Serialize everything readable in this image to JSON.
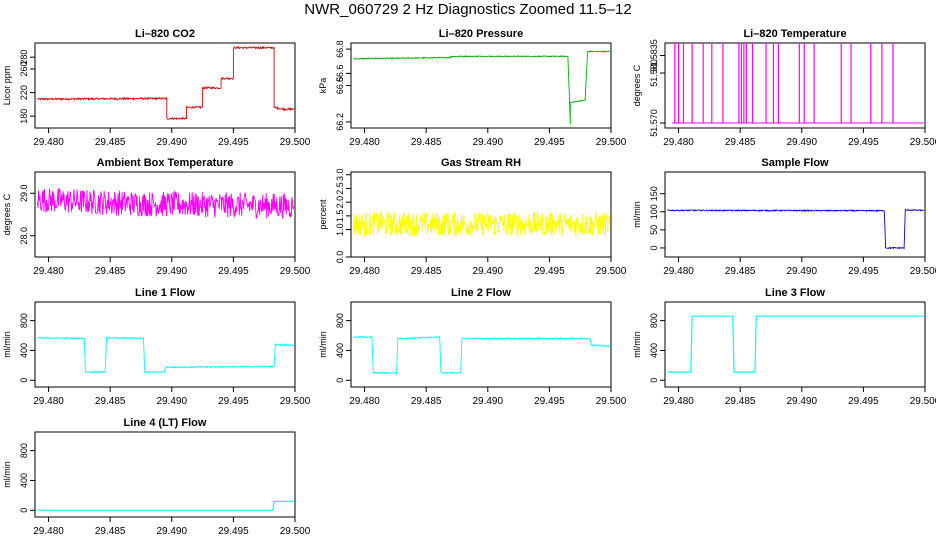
{
  "page": {
    "title": "NWR_060729  2 Hz Diagnostics Zoomed 11.5–12"
  },
  "chart_data": [
    {
      "type": "line",
      "title": "Li–820 CO2",
      "ylabel": "Licor ppm",
      "xlabel": "",
      "xlim": [
        29.4789,
        29.5
      ],
      "ylim": [
        160,
        304
      ],
      "xticks": [
        "29.480",
        "29.485",
        "29.490",
        "29.495",
        "29.500"
      ],
      "yticks": [
        {
          "v": 180,
          "label": "180"
        },
        {
          "v": 220,
          "label": "220"
        },
        {
          "v": 260,
          "label": "260"
        },
        {
          "v": 280,
          "label": "280"
        }
      ],
      "color": "#dd0000",
      "noise": 1.5,
      "impulses": false,
      "series": [
        {
          "name": "CO2",
          "x": [
            29.4791,
            29.4896,
            29.4896,
            29.4912,
            29.4912,
            29.4925,
            29.4925,
            29.494,
            29.494,
            29.495,
            29.495,
            29.4983,
            29.4983,
            29.499,
            29.4999
          ],
          "y": [
            209,
            210,
            176,
            176,
            195,
            195,
            228,
            228,
            244,
            244,
            296,
            296,
            195,
            192,
            192
          ]
        }
      ]
    },
    {
      "type": "line",
      "title": "Li–820 Pressure",
      "ylabel": "kPa",
      "xlabel": "",
      "xlim": [
        29.4789,
        29.5
      ],
      "ylim": [
        66.15,
        66.85
      ],
      "xticks": [
        "29.480",
        "29.485",
        "29.490",
        "29.495",
        "29.500"
      ],
      "yticks": [
        {
          "v": 66.2,
          "label": "66.2"
        },
        {
          "v": 66.5,
          "label": "66.5"
        },
        {
          "v": 66.6,
          "label": "66.6"
        },
        {
          "v": 66.8,
          "label": "66.8"
        }
      ],
      "color": "#00b000",
      "noise": 0.004,
      "impulses": false,
      "series": [
        {
          "name": "Pressure",
          "x": [
            29.4791,
            29.487,
            29.487,
            29.4965,
            29.4967,
            29.4967,
            29.4979,
            29.4981,
            29.4999
          ],
          "y": [
            66.72,
            66.73,
            66.74,
            66.74,
            66.18,
            66.36,
            66.38,
            66.78,
            66.78
          ]
        }
      ]
    },
    {
      "type": "line",
      "title": "Li–820 Temperature",
      "ylabel": "degrees C",
      "xlabel": "",
      "xlim": [
        29.4789,
        29.5
      ],
      "ylim": [
        51.569,
        51.586
      ],
      "xticks": [
        "29.480",
        "29.485",
        "29.490",
        "29.495",
        "29.500"
      ],
      "yticks": [
        {
          "v": 51.57,
          "label": "51.570"
        },
        {
          "v": 51.58,
          "label": "51.580"
        },
        {
          "v": 51.5835,
          "label": "51.5835"
        }
      ],
      "color": "#ff00ff",
      "noise": 0,
      "impulses": true,
      "base": 51.57,
      "series": [
        {
          "name": "Temperature",
          "x": [
            29.4797,
            29.48,
            29.4804,
            29.4811,
            29.482,
            29.4827,
            29.4836,
            29.4849,
            29.4851,
            29.4853,
            29.4855,
            29.486,
            29.4871,
            29.4877,
            29.4881,
            29.4898,
            29.4902,
            29.491,
            29.4932,
            29.494,
            29.4956,
            29.4965,
            29.4974
          ],
          "y": [
            51.586,
            51.586,
            51.586,
            51.586,
            51.586,
            51.586,
            51.586,
            51.586,
            51.586,
            51.586,
            51.586,
            51.586,
            51.586,
            51.586,
            51.586,
            51.586,
            51.586,
            51.586,
            51.586,
            51.586,
            51.586,
            51.586,
            51.586
          ]
        }
      ]
    },
    {
      "type": "line",
      "title": "Ambient Box Temperature",
      "ylabel": "degrees C",
      "xlabel": "",
      "xlim": [
        29.4789,
        29.5
      ],
      "ylim": [
        27.5,
        29.5
      ],
      "xticks": [
        "29.480",
        "29.485",
        "29.490",
        "29.495",
        "29.500"
      ],
      "yticks": [
        {
          "v": 28.0,
          "label": "28.0"
        },
        {
          "v": 29.0,
          "label": "29.0"
        }
      ],
      "color": "#ff00ff",
      "noise": 0.3,
      "impulses": false,
      "series": [
        {
          "name": "Ambient",
          "x": [
            29.4791,
            29.483,
            29.488,
            29.4999
          ],
          "y": [
            28.85,
            28.8,
            28.75,
            28.7
          ]
        }
      ]
    },
    {
      "type": "line",
      "title": "Gas Stream RH",
      "ylabel": "percent",
      "xlabel": "",
      "xlim": [
        29.4789,
        29.5
      ],
      "ylim": [
        0.0,
        3.1
      ],
      "xticks": [
        "29.480",
        "29.485",
        "29.490",
        "29.495",
        "29.500"
      ],
      "yticks": [
        {
          "v": 0.0,
          "label": "0.0"
        },
        {
          "v": 1.0,
          "label": "1.0"
        },
        {
          "v": 1.5,
          "label": "1.5"
        },
        {
          "v": 2.0,
          "label": "2.0"
        },
        {
          "v": 2.5,
          "label": "2.5"
        },
        {
          "v": 3.0,
          "label": "3.0"
        }
      ],
      "color": "#ffff00",
      "noise": 0.45,
      "impulses": false,
      "series": [
        {
          "name": "RH",
          "x": [
            29.4791,
            29.4999
          ],
          "y": [
            1.2,
            1.2
          ]
        }
      ]
    },
    {
      "type": "line",
      "title": "Sample Flow",
      "ylabel": "ml/min",
      "xlabel": "",
      "xlim": [
        29.4789,
        29.5
      ],
      "ylim": [
        -25,
        210
      ],
      "xticks": [
        "29.480",
        "29.485",
        "29.490",
        "29.495",
        "29.500"
      ],
      "yticks": [
        {
          "v": 0,
          "label": "0"
        },
        {
          "v": 50,
          "label": "50"
        },
        {
          "v": 100,
          "label": "100"
        },
        {
          "v": 150,
          "label": "150"
        }
      ],
      "color": "#0000cc",
      "noise": 1.5,
      "impulses": false,
      "series": [
        {
          "name": "Flow",
          "x": [
            29.4791,
            29.4967,
            29.4968,
            29.4983,
            29.4984,
            29.4999
          ],
          "y": [
            104,
            103,
            0,
            0,
            105,
            104
          ]
        }
      ]
    },
    {
      "type": "line",
      "title": "Line 1 Flow",
      "ylabel": "ml/min",
      "xlabel": "",
      "xlim": [
        29.4789,
        29.5
      ],
      "ylim": [
        -90,
        1050
      ],
      "xticks": [
        "29.480",
        "29.485",
        "29.490",
        "29.495",
        "29.500"
      ],
      "yticks": [
        {
          "v": 0,
          "label": "0"
        },
        {
          "v": 400,
          "label": "400"
        },
        {
          "v": 800,
          "label": "800"
        }
      ],
      "color": "#00ffff",
      "noise": 8,
      "impulses": false,
      "series": [
        {
          "name": "Line 1",
          "x": [
            29.4791,
            29.4829,
            29.483,
            29.4846,
            29.4847,
            29.4877,
            29.4878,
            29.4894,
            29.4895,
            29.4983,
            29.4984,
            29.4999
          ],
          "y": [
            570,
            560,
            110,
            110,
            570,
            560,
            110,
            110,
            175,
            185,
            480,
            470
          ]
        }
      ]
    },
    {
      "type": "line",
      "title": "Line 2 Flow",
      "ylabel": "ml/min",
      "xlabel": "",
      "xlim": [
        29.4789,
        29.5
      ],
      "ylim": [
        -90,
        1050
      ],
      "xticks": [
        "29.480",
        "29.485",
        "29.490",
        "29.495",
        "29.500"
      ],
      "yticks": [
        {
          "v": 0,
          "label": "0"
        },
        {
          "v": 400,
          "label": "400"
        },
        {
          "v": 800,
          "label": "800"
        }
      ],
      "color": "#00ffff",
      "noise": 8,
      "impulses": false,
      "series": [
        {
          "name": "Line 2",
          "x": [
            29.4791,
            29.4806,
            29.4807,
            29.4826,
            29.4827,
            29.4861,
            29.4862,
            29.4878,
            29.4879,
            29.4983,
            29.4984,
            29.4999
          ],
          "y": [
            580,
            580,
            100,
            100,
            560,
            580,
            100,
            100,
            560,
            560,
            470,
            460
          ]
        }
      ]
    },
    {
      "type": "line",
      "title": "Line 3 Flow",
      "ylabel": "ml/min",
      "xlabel": "",
      "xlim": [
        29.4789,
        29.5
      ],
      "ylim": [
        -90,
        1050
      ],
      "xticks": [
        "29.480",
        "29.485",
        "29.490",
        "29.495",
        "29.500"
      ],
      "yticks": [
        {
          "v": 0,
          "label": "0"
        },
        {
          "v": 400,
          "label": "400"
        },
        {
          "v": 800,
          "label": "800"
        }
      ],
      "color": "#00ffff",
      "noise": 0,
      "impulses": false,
      "series": [
        {
          "name": "Line 3",
          "x": [
            29.4791,
            29.481,
            29.4811,
            29.4844,
            29.4845,
            29.4862,
            29.4863,
            29.4999
          ],
          "y": [
            110,
            110,
            860,
            860,
            110,
            110,
            860,
            860
          ]
        }
      ]
    },
    {
      "type": "line",
      "title": "Line 4 (LT) Flow",
      "ylabel": "ml/min",
      "xlabel": "",
      "xlim": [
        29.4789,
        29.5
      ],
      "ylim": [
        -90,
        1050
      ],
      "xticks": [
        "29.480",
        "29.485",
        "29.490",
        "29.495",
        "29.500"
      ],
      "yticks": [
        {
          "v": 0,
          "label": "0"
        },
        {
          "v": 400,
          "label": "400"
        },
        {
          "v": 800,
          "label": "800"
        }
      ],
      "color": "#00ffff",
      "noise": 0,
      "impulses": false,
      "series": [
        {
          "name": "Line 4",
          "x": [
            29.4791,
            29.4982,
            29.4983,
            29.4999
          ],
          "y": [
            0,
            0,
            120,
            120
          ]
        }
      ]
    }
  ]
}
